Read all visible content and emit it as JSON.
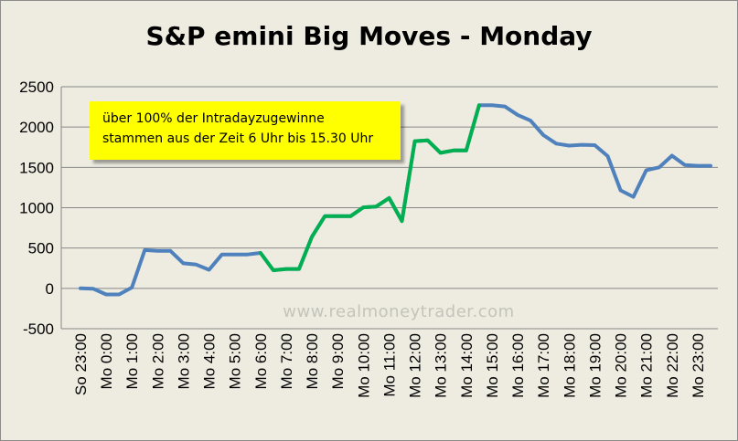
{
  "chart_data": {
    "type": "line",
    "title": "S&P emini Big Moves - Monday",
    "annotation_lines": [
      "über 100% der Intradayzugewinne",
      "stammen aus der Zeit 6 Uhr bis 15.30 Uhr"
    ],
    "watermark": "www.realmoneytrader.com",
    "ylim": [
      -500,
      2500
    ],
    "yticks": [
      "2500",
      "2000",
      "1500",
      "1000",
      "500",
      "0",
      "-500"
    ],
    "xtick_labels": [
      "So 23:00",
      "Mo 0:00",
      "Mo 1:00",
      "Mo 2:00",
      "Mo 3:00",
      "Mo 4:00",
      "Mo 5:00",
      "Mo 6:00",
      "Mo 7:00",
      "Mo 8:00",
      "Mo 9:00",
      "Mo 10:00",
      "Mo 11:00",
      "Mo 12:00",
      "Mo 13:00",
      "Mo 14:00",
      "Mo 15:00",
      "Mo 16:00",
      "Mo 17:00",
      "Mo 18:00",
      "Mo 19:00",
      "Mo 20:00",
      "Mo 21:00",
      "Mo 22:00",
      "Mo 23:00"
    ],
    "grid": true,
    "values": [
      0,
      -5,
      -75,
      -75,
      10,
      475,
      465,
      465,
      310,
      295,
      230,
      420,
      420,
      420,
      440,
      225,
      240,
      240,
      640,
      895,
      895,
      895,
      1005,
      1015,
      1120,
      835,
      1825,
      1835,
      1680,
      1710,
      1710,
      2270,
      2270,
      2255,
      2150,
      2080,
      1900,
      1795,
      1770,
      1780,
      1775,
      1640,
      1215,
      1135,
      1465,
      1500,
      1645,
      1530,
      1520,
      1520
    ],
    "highlight_range": [
      14,
      31
    ],
    "colors": {
      "line": "#4f81bd",
      "highlight": "#00b050",
      "background": "#eeece1",
      "grid": "#878787",
      "note": "#ffff00"
    }
  }
}
